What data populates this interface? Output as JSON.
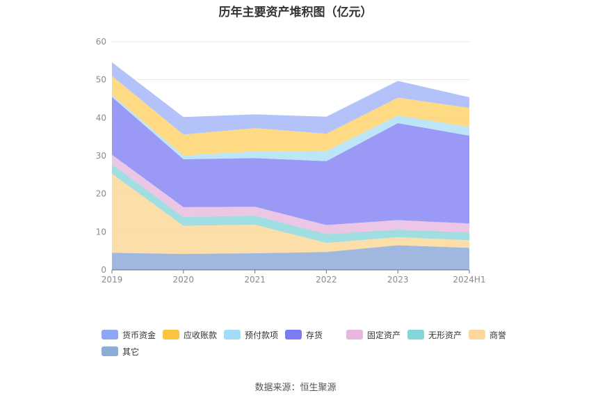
{
  "title": "历年主要资产堆积图（亿元）",
  "source": "数据来源：恒生聚源",
  "chart_data": {
    "type": "area",
    "stacked": true,
    "categories": [
      "2019",
      "2020",
      "2021",
      "2022",
      "2023",
      "2024H1"
    ],
    "ylim": [
      0,
      60
    ],
    "yticks": [
      0,
      10,
      20,
      30,
      40,
      50,
      60
    ],
    "grid": true,
    "legend_position": "bottom",
    "series": [
      {
        "name": "其它",
        "color": "#8fabd9",
        "values": [
          4.5,
          4.2,
          4.4,
          4.7,
          6.5,
          5.8
        ]
      },
      {
        "name": "商誉",
        "color": "#fcd89a",
        "values": [
          20.8,
          7.4,
          7.5,
          2.4,
          2.1,
          2.0
        ]
      },
      {
        "name": "无形资产",
        "color": "#8fd8dc",
        "values": [
          2.5,
          2.3,
          2.4,
          2.3,
          2.0,
          2.0
        ]
      },
      {
        "name": "固定资产",
        "color": "#e9bde0",
        "values": [
          2.5,
          2.6,
          2.3,
          2.4,
          2.5,
          2.4
        ]
      },
      {
        "name": "存货",
        "color": "#8888f5",
        "values": [
          15.2,
          12.6,
          12.8,
          16.8,
          25.5,
          23.1
        ]
      },
      {
        "name": "预付款项",
        "color": "#b1e1f7",
        "values": [
          0.5,
          1.0,
          1.8,
          2.7,
          2.0,
          2.3
        ]
      },
      {
        "name": "应收账款",
        "color": "#fed370",
        "values": [
          5.0,
          5.5,
          6.1,
          4.5,
          4.7,
          5.0
        ]
      },
      {
        "name": "货币资金",
        "color": "#a6b9f8",
        "values": [
          3.6,
          4.6,
          3.6,
          4.5,
          4.4,
          2.8
        ]
      }
    ]
  },
  "legend": [
    {
      "name": "货币资金",
      "color": "#8fa6f7"
    },
    {
      "name": "应收账款",
      "color": "#fdc440"
    },
    {
      "name": "预付款项",
      "color": "#a3dcf7"
    },
    {
      "name": "存货",
      "color": "#7b7cf3"
    },
    {
      "name": "固定资产",
      "color": "#e8b6de"
    },
    {
      "name": "无形资产",
      "color": "#85d6d8"
    },
    {
      "name": "商誉",
      "color": "#fcd89a"
    },
    {
      "name": "其它",
      "color": "#8eacd8"
    }
  ]
}
